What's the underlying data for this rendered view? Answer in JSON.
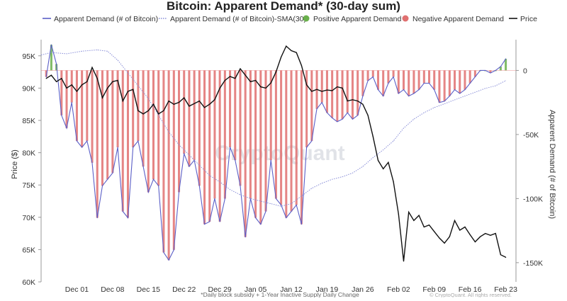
{
  "chart_data": {
    "type": "bar+line",
    "title": "Bitcoin: Apparent Demand* (30-day sum)",
    "legend": [
      {
        "label": "Apparent Demand (# of Bitcoin)",
        "color": "#5b5fc7",
        "style": "line"
      },
      {
        "label": "Apparent Demand (# of Bitcoin)-SMA(30)",
        "color": "#8a8fd8",
        "style": "dotted"
      },
      {
        "label": "Positive Apparent Demand",
        "color": "#6ab04c",
        "style": "swatch"
      },
      {
        "label": "Negative Apparent Demand",
        "color": "#e07070",
        "style": "swatch"
      },
      {
        "label": "Price",
        "color": "#111111",
        "style": "line"
      }
    ],
    "left_axis": {
      "label": "Price ($)",
      "ticks": [
        "95K",
        "90K",
        "85K",
        "80K",
        "75K",
        "70K",
        "65K",
        "60K"
      ],
      "tick_values": [
        95000,
        90000,
        85000,
        80000,
        75000,
        70000,
        65000,
        60000
      ],
      "range": [
        60000,
        97500
      ]
    },
    "right_axis": {
      "label": "Apparent Demand (# of Bitcoin)",
      "ticks": [
        "0",
        "-50K",
        "-100K",
        "-150K"
      ],
      "tick_values": [
        0,
        -50000,
        -100000,
        -150000
      ],
      "range": [
        -165000,
        24000
      ]
    },
    "x_axis": {
      "ticks": [
        "Dec 01",
        "Dec 08",
        "Dec 15",
        "Dec 22",
        "Dec 29",
        "Jan 05",
        "Jan 12",
        "Jan 19",
        "Jan 26",
        "Feb 02",
        "Feb 09",
        "Feb 16",
        "Feb 23"
      ],
      "tick_positions": [
        4,
        11,
        18,
        25,
        32,
        39,
        46,
        53,
        60,
        67,
        74,
        81,
        88
      ]
    },
    "x_range": [
      -3,
      90
    ],
    "demand_series": [
      {
        "day": -2,
        "v": -5000
      },
      {
        "day": -1,
        "v": 20000
      },
      {
        "day": 0,
        "v": 5000
      },
      {
        "day": 1,
        "v": -35000
      },
      {
        "day": 2,
        "v": -45000
      },
      {
        "day": 3,
        "v": -25000
      },
      {
        "day": 4,
        "v": -55000
      },
      {
        "day": 5,
        "v": -60000
      },
      {
        "day": 6,
        "v": -55000
      },
      {
        "day": 7,
        "v": -72000
      },
      {
        "day": 8,
        "v": -115000
      },
      {
        "day": 9,
        "v": -90000
      },
      {
        "day": 10,
        "v": -85000
      },
      {
        "day": 11,
        "v": -80000
      },
      {
        "day": 12,
        "v": -60000
      },
      {
        "day": 13,
        "v": -110000
      },
      {
        "day": 14,
        "v": -115000
      },
      {
        "day": 15,
        "v": -60000
      },
      {
        "day": 16,
        "v": -55000
      },
      {
        "day": 17,
        "v": -75000
      },
      {
        "day": 18,
        "v": -95000
      },
      {
        "day": 19,
        "v": -85000
      },
      {
        "day": 20,
        "v": -90000
      },
      {
        "day": 21,
        "v": -142000
      },
      {
        "day": 22,
        "v": -148000
      },
      {
        "day": 23,
        "v": -140000
      },
      {
        "day": 24,
        "v": -95000
      },
      {
        "day": 25,
        "v": -65000
      },
      {
        "day": 26,
        "v": -75000
      },
      {
        "day": 27,
        "v": -70000
      },
      {
        "day": 28,
        "v": -90000
      },
      {
        "day": 29,
        "v": -120000
      },
      {
        "day": 30,
        "v": -118000
      },
      {
        "day": 31,
        "v": -100000
      },
      {
        "day": 32,
        "v": -118000
      },
      {
        "day": 33,
        "v": -100000
      },
      {
        "day": 34,
        "v": -60000
      },
      {
        "day": 35,
        "v": -70000
      },
      {
        "day": 36,
        "v": -90000
      },
      {
        "day": 37,
        "v": -130000
      },
      {
        "day": 38,
        "v": -100000
      },
      {
        "day": 39,
        "v": -115000
      },
      {
        "day": 40,
        "v": -120000
      },
      {
        "day": 41,
        "v": -110000
      },
      {
        "day": 42,
        "v": -70000
      },
      {
        "day": 43,
        "v": -100000
      },
      {
        "day": 44,
        "v": -105000
      },
      {
        "day": 45,
        "v": -115000
      },
      {
        "day": 46,
        "v": -110000
      },
      {
        "day": 47,
        "v": -105000
      },
      {
        "day": 48,
        "v": -120000
      },
      {
        "day": 49,
        "v": -60000
      },
      {
        "day": 50,
        "v": -55000
      },
      {
        "day": 51,
        "v": -30000
      },
      {
        "day": 52,
        "v": -25000
      },
      {
        "day": 53,
        "v": -33000
      },
      {
        "day": 54,
        "v": -37000
      },
      {
        "day": 55,
        "v": -40000
      },
      {
        "day": 56,
        "v": -38000
      },
      {
        "day": 57,
        "v": -33000
      },
      {
        "day": 58,
        "v": -38000
      },
      {
        "day": 59,
        "v": -35000
      },
      {
        "day": 60,
        "v": -20000
      },
      {
        "day": 61,
        "v": -8000
      },
      {
        "day": 62,
        "v": -5000
      },
      {
        "day": 63,
        "v": -15000
      },
      {
        "day": 64,
        "v": -20000
      },
      {
        "day": 65,
        "v": -10000
      },
      {
        "day": 66,
        "v": -5000
      },
      {
        "day": 67,
        "v": -18000
      },
      {
        "day": 68,
        "v": -15000
      },
      {
        "day": 69,
        "v": -20000
      },
      {
        "day": 70,
        "v": -18000
      },
      {
        "day": 71,
        "v": -15000
      },
      {
        "day": 72,
        "v": -10000
      },
      {
        "day": 73,
        "v": -10000
      },
      {
        "day": 74,
        "v": -15000
      },
      {
        "day": 75,
        "v": -25000
      },
      {
        "day": 76,
        "v": -24000
      },
      {
        "day": 77,
        "v": -20000
      },
      {
        "day": 78,
        "v": -15000
      },
      {
        "day": 79,
        "v": -18000
      },
      {
        "day": 80,
        "v": -15000
      },
      {
        "day": 81,
        "v": -10000
      },
      {
        "day": 82,
        "v": -5000
      },
      {
        "day": 83,
        "v": 0
      },
      {
        "day": 84,
        "v": 0
      },
      {
        "day": 85,
        "v": -2000
      },
      {
        "day": 86,
        "v": 0
      },
      {
        "day": 87,
        "v": 3000
      },
      {
        "day": 88,
        "v": 9000
      }
    ],
    "sma_series": [
      {
        "day": -3,
        "v": 12000
      },
      {
        "day": -1,
        "v": 14000
      },
      {
        "day": 2,
        "v": 13000
      },
      {
        "day": 5,
        "v": 15000
      },
      {
        "day": 8,
        "v": 16000
      },
      {
        "day": 10,
        "v": 15000
      },
      {
        "day": 12,
        "v": 8000
      },
      {
        "day": 14,
        "v": -2000
      },
      {
        "day": 16,
        "v": -12000
      },
      {
        "day": 18,
        "v": -22000
      },
      {
        "day": 20,
        "v": -35000
      },
      {
        "day": 22,
        "v": -48000
      },
      {
        "day": 24,
        "v": -58000
      },
      {
        "day": 26,
        "v": -66000
      },
      {
        "day": 28,
        "v": -74000
      },
      {
        "day": 30,
        "v": -82000
      },
      {
        "day": 32,
        "v": -87000
      },
      {
        "day": 34,
        "v": -93000
      },
      {
        "day": 36,
        "v": -97000
      },
      {
        "day": 38,
        "v": -100000
      },
      {
        "day": 40,
        "v": -102000
      },
      {
        "day": 42,
        "v": -104000
      },
      {
        "day": 44,
        "v": -106000
      },
      {
        "day": 46,
        "v": -104000
      },
      {
        "day": 48,
        "v": -98000
      },
      {
        "day": 50,
        "v": -92000
      },
      {
        "day": 52,
        "v": -88000
      },
      {
        "day": 54,
        "v": -85000
      },
      {
        "day": 56,
        "v": -83000
      },
      {
        "day": 58,
        "v": -80000
      },
      {
        "day": 60,
        "v": -75000
      },
      {
        "day": 62,
        "v": -68000
      },
      {
        "day": 64,
        "v": -62000
      },
      {
        "day": 66,
        "v": -55000
      },
      {
        "day": 68,
        "v": -45000
      },
      {
        "day": 70,
        "v": -38000
      },
      {
        "day": 72,
        "v": -33000
      },
      {
        "day": 74,
        "v": -29000
      },
      {
        "day": 76,
        "v": -26000
      },
      {
        "day": 78,
        "v": -23000
      },
      {
        "day": 80,
        "v": -20000
      },
      {
        "day": 82,
        "v": -17000
      },
      {
        "day": 84,
        "v": -14000
      },
      {
        "day": 86,
        "v": -12000
      },
      {
        "day": 88,
        "v": -8000
      }
    ],
    "price_series": [
      {
        "day": -2,
        "v": 91500
      },
      {
        "day": -1,
        "v": 92000
      },
      {
        "day": 0,
        "v": 91000
      },
      {
        "day": 1,
        "v": 91500
      },
      {
        "day": 2,
        "v": 90000
      },
      {
        "day": 3,
        "v": 90500
      },
      {
        "day": 4,
        "v": 89500
      },
      {
        "day": 5,
        "v": 90500
      },
      {
        "day": 6,
        "v": 91000
      },
      {
        "day": 7,
        "v": 93200
      },
      {
        "day": 8,
        "v": 91500
      },
      {
        "day": 9,
        "v": 88500
      },
      {
        "day": 10,
        "v": 90000
      },
      {
        "day": 11,
        "v": 91000
      },
      {
        "day": 12,
        "v": 91200
      },
      {
        "day": 13,
        "v": 88000
      },
      {
        "day": 14,
        "v": 89500
      },
      {
        "day": 15,
        "v": 89800
      },
      {
        "day": 16,
        "v": 86500
      },
      {
        "day": 17,
        "v": 86000
      },
      {
        "day": 18,
        "v": 86500
      },
      {
        "day": 19,
        "v": 87500
      },
      {
        "day": 20,
        "v": 86000
      },
      {
        "day": 21,
        "v": 86500
      },
      {
        "day": 22,
        "v": 88000
      },
      {
        "day": 23,
        "v": 87500
      },
      {
        "day": 24,
        "v": 87800
      },
      {
        "day": 25,
        "v": 88500
      },
      {
        "day": 26,
        "v": 87200
      },
      {
        "day": 27,
        "v": 87600
      },
      {
        "day": 28,
        "v": 88000
      },
      {
        "day": 29,
        "v": 87000
      },
      {
        "day": 30,
        "v": 87500
      },
      {
        "day": 31,
        "v": 88200
      },
      {
        "day": 32,
        "v": 90000
      },
      {
        "day": 33,
        "v": 91200
      },
      {
        "day": 34,
        "v": 91800
      },
      {
        "day": 35,
        "v": 91500
      },
      {
        "day": 36,
        "v": 93000
      },
      {
        "day": 37,
        "v": 92000
      },
      {
        "day": 38,
        "v": 91000
      },
      {
        "day": 39,
        "v": 91200
      },
      {
        "day": 40,
        "v": 90200
      },
      {
        "day": 41,
        "v": 90000
      },
      {
        "day": 42,
        "v": 90800
      },
      {
        "day": 43,
        "v": 92500
      },
      {
        "day": 44,
        "v": 94800
      },
      {
        "day": 45,
        "v": 96500
      },
      {
        "day": 46,
        "v": 95800
      },
      {
        "day": 47,
        "v": 95500
      },
      {
        "day": 48,
        "v": 93500
      },
      {
        "day": 49,
        "v": 90500
      },
      {
        "day": 50,
        "v": 89500
      },
      {
        "day": 51,
        "v": 89800
      },
      {
        "day": 52,
        "v": 89500
      },
      {
        "day": 53,
        "v": 89700
      },
      {
        "day": 54,
        "v": 89600
      },
      {
        "day": 55,
        "v": 90200
      },
      {
        "day": 56,
        "v": 90000
      },
      {
        "day": 57,
        "v": 88000
      },
      {
        "day": 58,
        "v": 88200
      },
      {
        "day": 59,
        "v": 88000
      },
      {
        "day": 60,
        "v": 87500
      },
      {
        "day": 61,
        "v": 85800
      },
      {
        "day": 62,
        "v": 82500
      },
      {
        "day": 63,
        "v": 78800
      },
      {
        "day": 64,
        "v": 77500
      },
      {
        "day": 65,
        "v": 78500
      },
      {
        "day": 66,
        "v": 75500
      },
      {
        "day": 67,
        "v": 70500
      },
      {
        "day": 68,
        "v": 63200
      },
      {
        "day": 69,
        "v": 70800
      },
      {
        "day": 70,
        "v": 69500
      },
      {
        "day": 71,
        "v": 70300
      },
      {
        "day": 72,
        "v": 68500
      },
      {
        "day": 73,
        "v": 68800
      },
      {
        "day": 74,
        "v": 67800
      },
      {
        "day": 75,
        "v": 66800
      },
      {
        "day": 76,
        "v": 66000
      },
      {
        "day": 77,
        "v": 67000
      },
      {
        "day": 78,
        "v": 69500
      },
      {
        "day": 79,
        "v": 68000
      },
      {
        "day": 80,
        "v": 68500
      },
      {
        "day": 81,
        "v": 67300
      },
      {
        "day": 82,
        "v": 66200
      },
      {
        "day": 83,
        "v": 67000
      },
      {
        "day": 84,
        "v": 67500
      },
      {
        "day": 85,
        "v": 67200
      },
      {
        "day": 86,
        "v": 67500
      },
      {
        "day": 87,
        "v": 64200
      },
      {
        "day": 88,
        "v": 63800
      }
    ]
  },
  "watermark": "CryptoQuant",
  "footnote": "*Daily block subsidy + 1-Year Inactive Supply Daily Change",
  "credit": "© CryptoQuant. All rights reserved."
}
